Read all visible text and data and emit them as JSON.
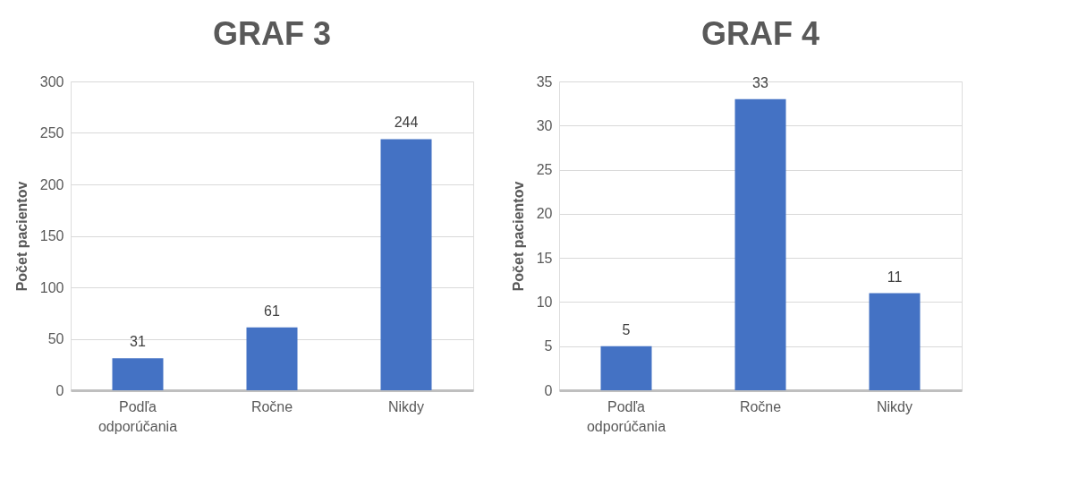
{
  "chart_data": [
    {
      "type": "bar",
      "title": "GRAF 3",
      "ylabel": "Počet pacientov",
      "categories": [
        "Podľa odporúčania",
        "Ročne",
        "Nikdy"
      ],
      "values": [
        31,
        61,
        244
      ],
      "color": "#4472c4",
      "ylim": [
        0,
        300
      ],
      "yticks": [
        0,
        50,
        100,
        150,
        200,
        250,
        300
      ],
      "grid": "y",
      "data_labels": true
    },
    {
      "type": "bar",
      "title": "GRAF 4",
      "ylabel": "Počet pacientov",
      "categories": [
        "Podľa odporúčania",
        "Ročne",
        "Nikdy"
      ],
      "values": [
        5,
        33,
        11
      ],
      "color": "#4472c4",
      "ylim": [
        0,
        35
      ],
      "yticks": [
        0,
        5,
        10,
        15,
        20,
        25,
        30,
        35
      ],
      "grid": "y",
      "data_labels": true
    }
  ]
}
